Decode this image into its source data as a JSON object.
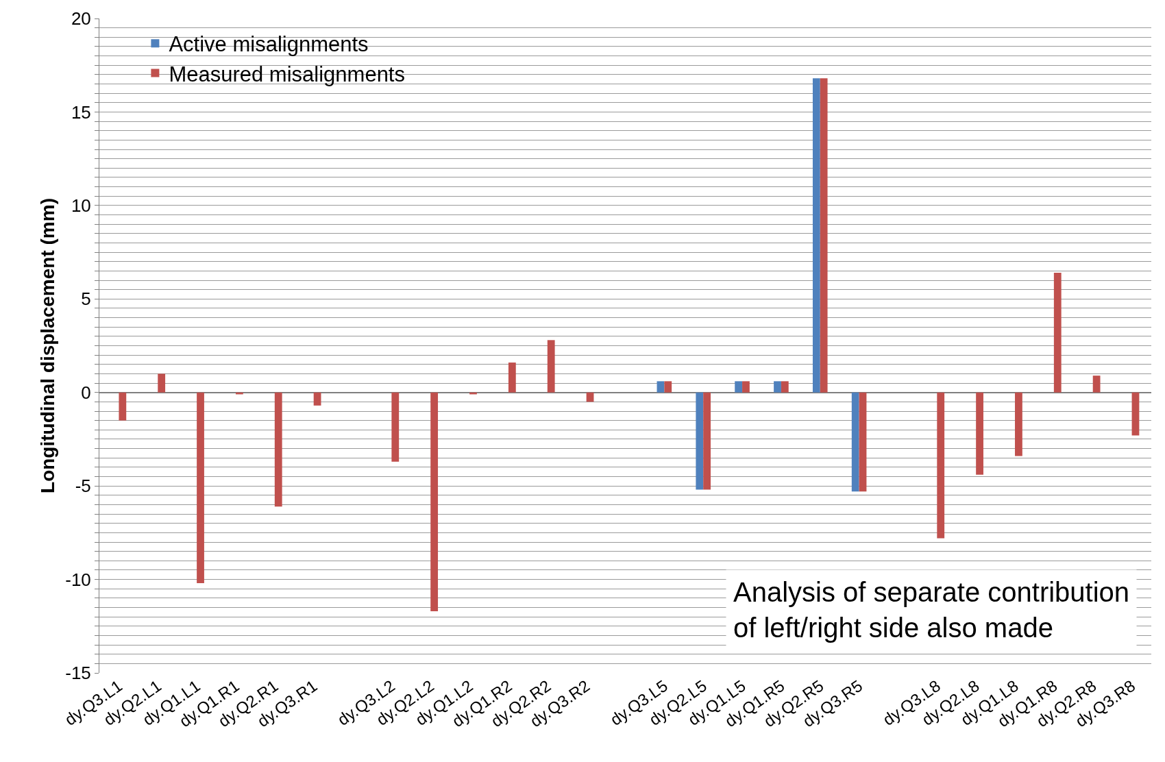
{
  "chart_data": {
    "type": "bar",
    "ylabel": "Longitudinal displacement (mm)",
    "categories": [
      "dy.Q3.L1",
      "dy.Q2.L1",
      "dy.Q1.L1",
      "dy.Q1.R1",
      "dy.Q2.R1",
      "dy.Q3.R1",
      null,
      "dy.Q3.L2",
      "dy.Q2.L2",
      "dy.Q1.L2",
      "dy.Q1.R2",
      "dy.Q2.R2",
      "dy.Q3.R2",
      null,
      "dy.Q3.L5",
      "dy.Q2.L5",
      "dy.Q1.L5",
      "dy.Q1.R5",
      "dy.Q2.R5",
      "dy.Q3.R5",
      null,
      "dy.Q3.L8",
      "dy.Q2.L8",
      "dy.Q1.L8",
      "dy.Q1.R8",
      "dy.Q2.R8",
      "dy.Q3.R8"
    ],
    "series": [
      {
        "name": "Active misalignments",
        "color": "#4f81bd",
        "values": [
          0,
          0,
          0,
          0,
          0,
          0,
          null,
          0,
          0,
          0,
          0,
          0,
          0,
          null,
          0.6,
          -5.2,
          0.6,
          0.6,
          16.8,
          -5.3,
          null,
          0,
          0,
          0,
          0,
          0,
          0
        ]
      },
      {
        "name": "Measured misalignments",
        "color": "#c0504d",
        "values": [
          -1.5,
          1.0,
          -10.2,
          -0.1,
          -6.1,
          -0.7,
          null,
          -3.7,
          -11.7,
          -0.1,
          1.6,
          2.8,
          -0.5,
          null,
          0.6,
          -5.2,
          0.6,
          0.6,
          16.8,
          -5.3,
          null,
          -7.8,
          -4.4,
          -3.4,
          6.4,
          0.9,
          -2.3
        ]
      }
    ],
    "ylim": [
      -15,
      20
    ],
    "yticks": [
      -15,
      {
        "value": -14.5,
        "label": null
      },
      {
        "value": -14,
        "label": null
      },
      {
        "value": -13.5,
        "label": null
      },
      {
        "value": -13,
        "label": null
      },
      {
        "value": -12.5,
        "label": null
      },
      {
        "value": -12,
        "label": null
      },
      {
        "value": -11.5,
        "label": null
      },
      {
        "value": -11,
        "label": null
      },
      {
        "value": -10.5,
        "label": null
      },
      -10,
      {
        "value": -9.5,
        "label": null
      },
      {
        "value": -9,
        "label": null
      },
      {
        "value": -8.5,
        "label": null
      },
      {
        "value": -8,
        "label": null
      },
      {
        "value": -7.5,
        "label": null
      },
      {
        "value": -7,
        "label": null
      },
      {
        "value": -6.5,
        "label": null
      },
      {
        "value": -6,
        "label": null
      },
      {
        "value": -5.5,
        "label": null
      },
      -5,
      {
        "value": -4.5,
        "label": null
      },
      {
        "value": -4,
        "label": null
      },
      {
        "value": -3.5,
        "label": null
      },
      {
        "value": -3,
        "label": null
      },
      {
        "value": -2.5,
        "label": null
      },
      {
        "value": -2,
        "label": null
      },
      {
        "value": -1.5,
        "label": null
      },
      {
        "value": -1,
        "label": null
      },
      {
        "value": -0.5,
        "label": null
      },
      0,
      {
        "value": 0.5,
        "label": null
      },
      {
        "value": 1,
        "label": null
      },
      {
        "value": 1.5,
        "label": null
      },
      {
        "value": 2,
        "label": null
      },
      {
        "value": 2.5,
        "label": null
      },
      {
        "value": 3,
        "label": null
      },
      {
        "value": 3.5,
        "label": null
      },
      {
        "value": 4,
        "label": null
      },
      {
        "value": 4.5,
        "label": null
      },
      5,
      {
        "value": 5.5,
        "label": null
      },
      {
        "value": 6,
        "label": null
      },
      {
        "value": 6.5,
        "label": null
      },
      {
        "value": 7,
        "label": null
      },
      {
        "value": 7.5,
        "label": null
      },
      {
        "value": 8,
        "label": null
      },
      {
        "value": 8.5,
        "label": null
      },
      {
        "value": 9,
        "label": null
      },
      {
        "value": 9.5,
        "label": null
      },
      10,
      {
        "value": 10.5,
        "label": null
      },
      {
        "value": 11,
        "label": null
      },
      {
        "value": 11.5,
        "label": null
      },
      {
        "value": 12,
        "label": null
      },
      {
        "value": 12.5,
        "label": null
      },
      {
        "value": 13,
        "label": null
      },
      {
        "value": 13.5,
        "label": null
      },
      {
        "value": 14,
        "label": null
      },
      {
        "value": 14.5,
        "label": null
      },
      15,
      {
        "value": 15.5,
        "label": null
      },
      {
        "value": 16,
        "label": null
      },
      {
        "value": 16.5,
        "label": null
      },
      {
        "value": 17,
        "label": null
      },
      {
        "value": 17.5,
        "label": null
      },
      {
        "value": 18,
        "label": null
      },
      {
        "value": 18.5,
        "label": null
      },
      {
        "value": 19,
        "label": null
      },
      {
        "value": 19.5,
        "label": null
      },
      20
    ],
    "grid": "y",
    "legend": "top left",
    "annotations": [
      "Analysis of separate contribution of left/right side also made"
    ]
  }
}
